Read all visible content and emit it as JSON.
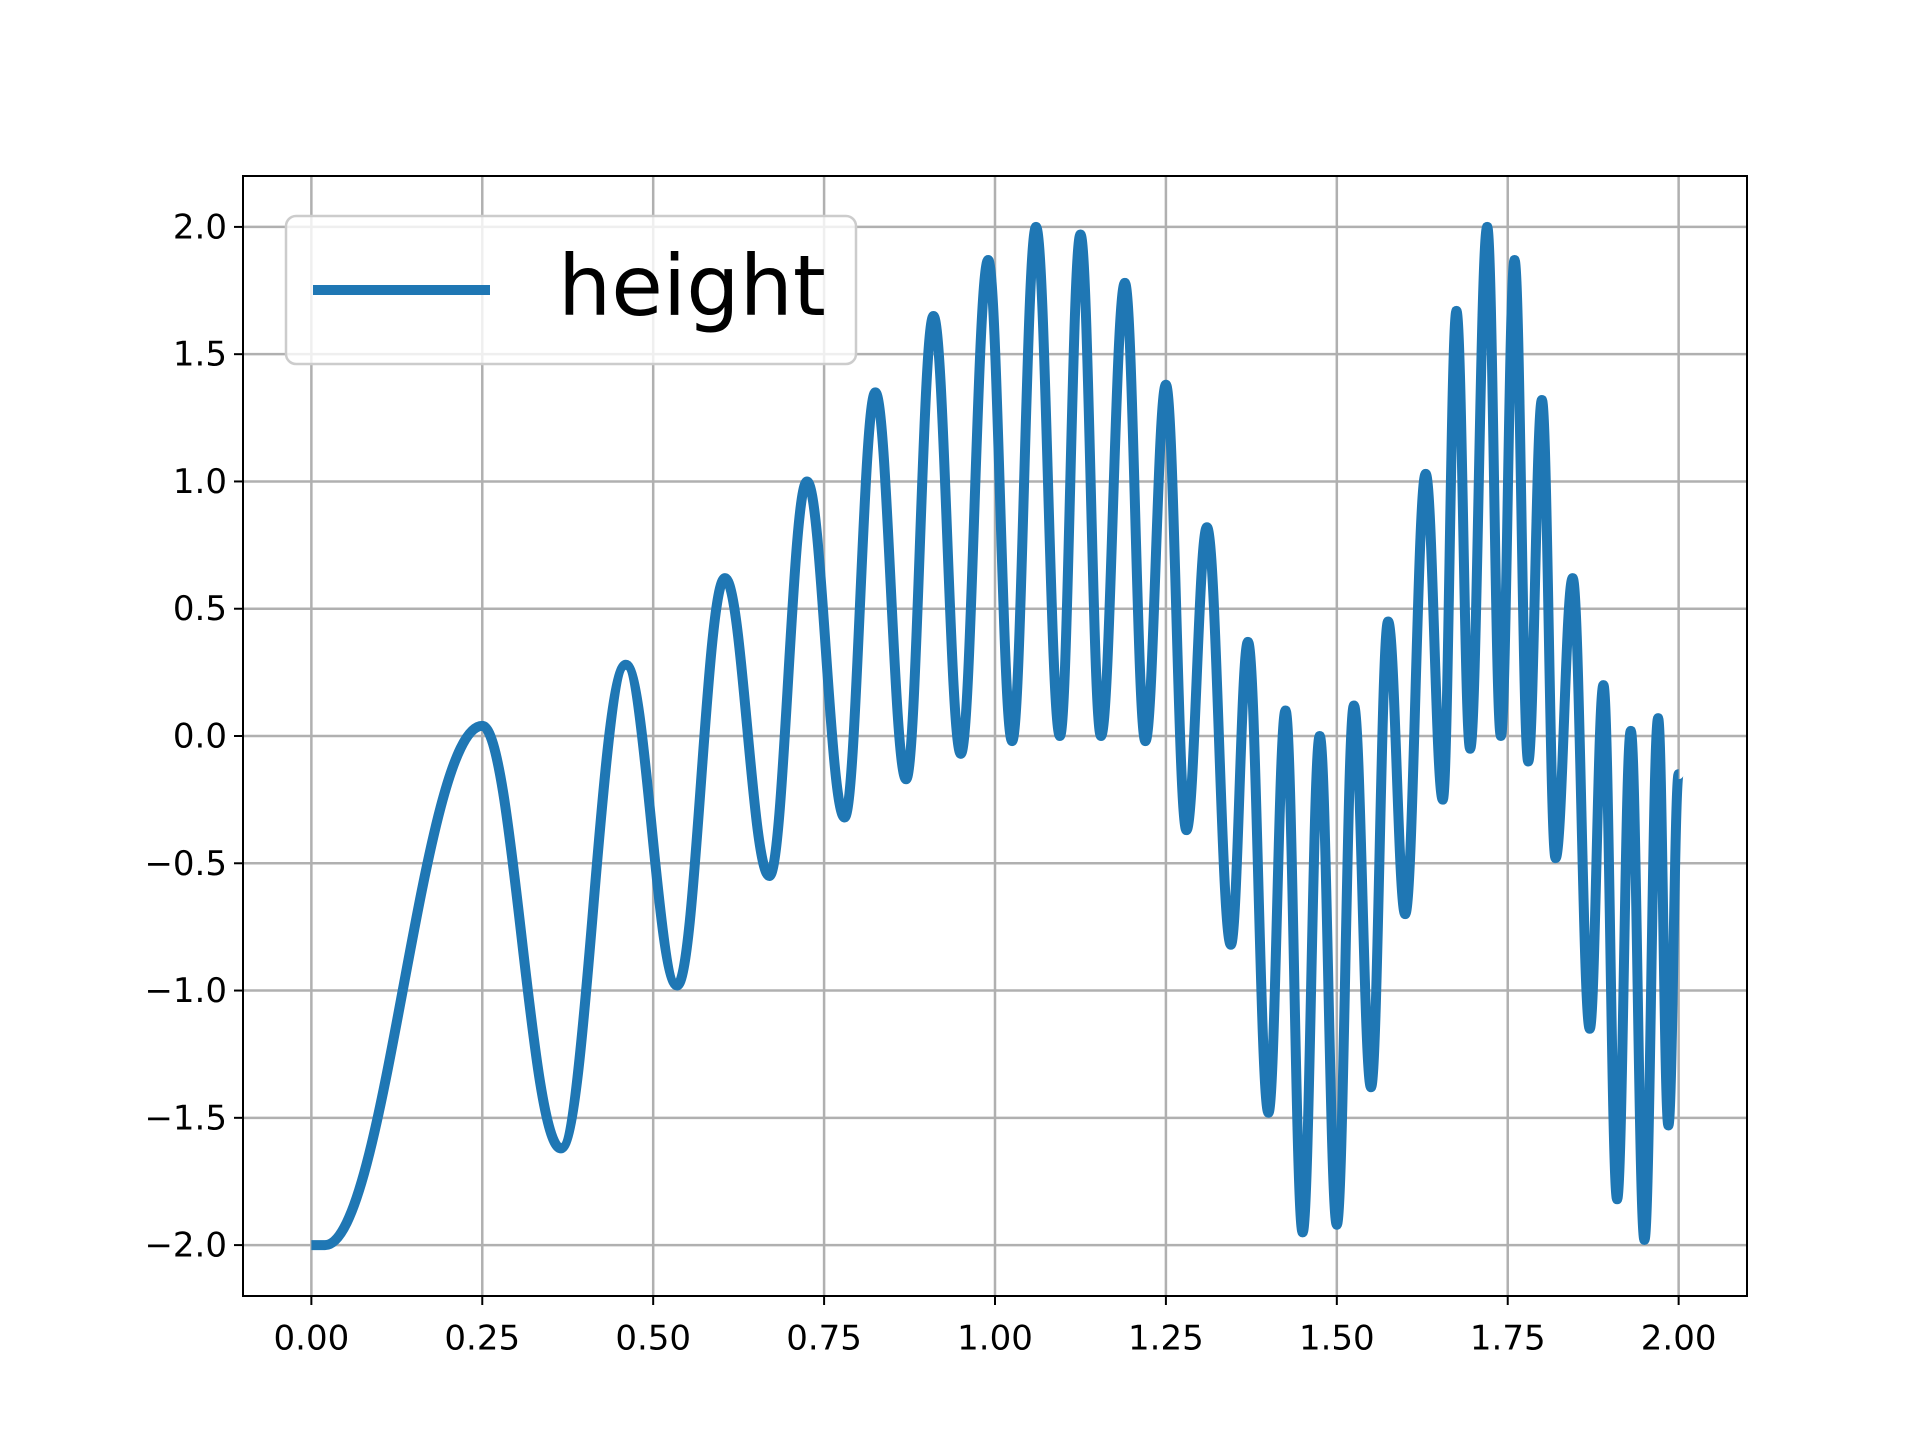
{
  "chart_data": {
    "type": "line",
    "x": [
      0,
      0.02,
      0.25,
      0.365,
      0.46,
      0.535,
      0.605,
      0.67,
      0.725,
      0.78,
      0.825,
      0.87,
      0.91,
      0.95,
      0.99,
      1.025,
      1.06,
      1.095,
      1.125,
      1.155,
      1.19,
      1.22,
      1.25,
      1.28,
      1.31,
      1.345,
      1.37,
      1.4,
      1.425,
      1.45,
      1.475,
      1.5,
      1.525,
      1.55,
      1.575,
      1.6,
      1.63,
      1.655,
      1.675,
      1.695,
      1.72,
      1.74,
      1.76,
      1.78,
      1.8,
      1.82,
      1.845,
      1.87,
      1.89,
      1.91,
      1.93,
      1.95,
      1.97,
      1.985,
      2.0
    ],
    "series": [
      {
        "name": "height",
        "color": "#1f77b4",
        "values": [
          -2,
          -2,
          0.04,
          -1.62,
          0.28,
          -0.98,
          0.62,
          -0.55,
          1.0,
          -0.32,
          1.35,
          -0.17,
          1.65,
          -0.07,
          1.87,
          -0.02,
          2.0,
          0.0,
          1.97,
          0.0,
          1.78,
          -0.02,
          1.38,
          -0.37,
          0.82,
          -0.82,
          0.37,
          -1.48,
          0.1,
          -1.95,
          0.0,
          -1.92,
          0.12,
          -1.38,
          0.45,
          -0.7,
          1.03,
          -0.25,
          1.67,
          -0.05,
          2.0,
          0.0,
          1.87,
          -0.1,
          1.32,
          -0.48,
          0.62,
          -1.15,
          0.2,
          -1.82,
          0.02,
          -1.98,
          0.07,
          -1.53,
          -0.15
        ]
      }
    ],
    "xlim": [
      -0.1,
      2.1
    ],
    "ylim": [
      -2.2,
      2.2
    ],
    "xticks": [
      {
        "value": 0,
        "label": "0.00"
      },
      {
        "value": 0.25,
        "label": "0.25"
      },
      {
        "value": 0.5,
        "label": "0.50"
      },
      {
        "value": 0.75,
        "label": "0.75"
      },
      {
        "value": 1,
        "label": "1.00"
      },
      {
        "value": 1.25,
        "label": "1.25"
      },
      {
        "value": 1.5,
        "label": "1.50"
      },
      {
        "value": 1.75,
        "label": "1.75"
      },
      {
        "value": 2,
        "label": "2.00"
      }
    ],
    "yticks": [
      {
        "value": -2,
        "label": "−2.0"
      },
      {
        "value": -1.5,
        "label": "−1.5"
      },
      {
        "value": -1,
        "label": "−1.0"
      },
      {
        "value": -0.5,
        "label": "−0.5"
      },
      {
        "value": 0,
        "label": "0.0"
      },
      {
        "value": 0.5,
        "label": "0.5"
      },
      {
        "value": 1,
        "label": "1.0"
      },
      {
        "value": 1.5,
        "label": "1.5"
      },
      {
        "value": 2,
        "label": "2.0"
      }
    ],
    "grid": true,
    "legend": "upper left"
  }
}
